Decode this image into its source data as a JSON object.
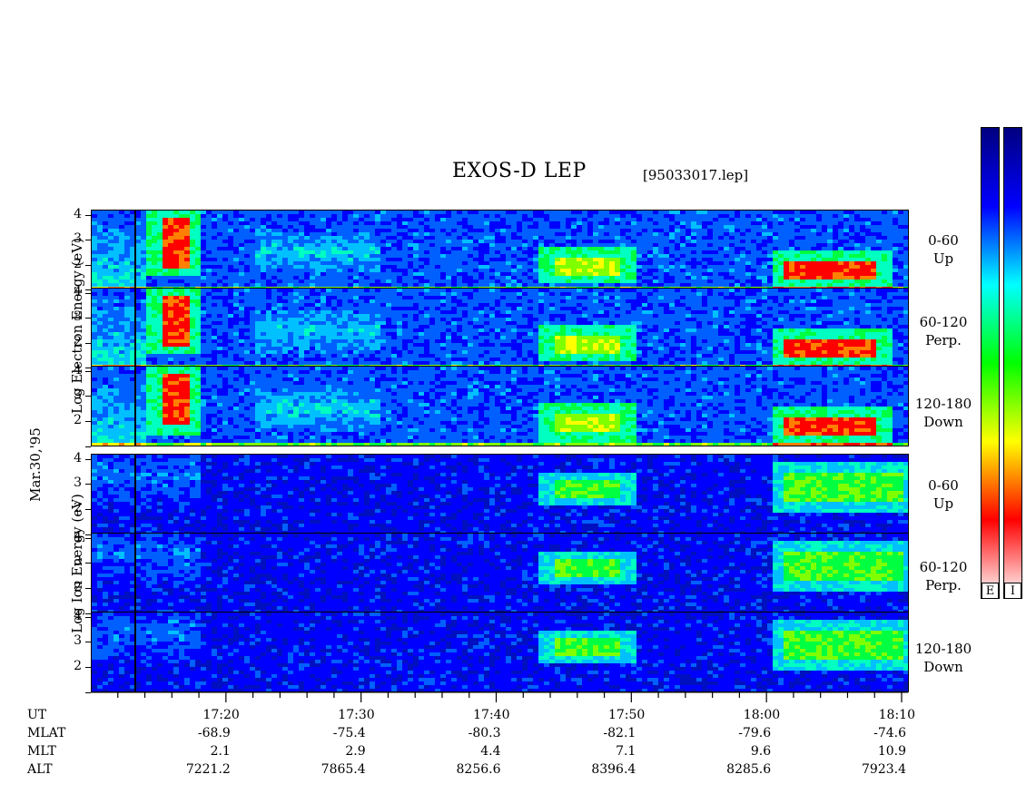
{
  "header": {
    "title": "EXOS-D LEP",
    "file": "[95033017.lep]"
  },
  "electron_group": {
    "ylabel": "Log  Electron  Energy  (eV)",
    "panels": [
      {
        "id": "e-up",
        "channel": "0-60",
        "direction": "Up"
      },
      {
        "id": "e-perp",
        "channel": "60-120",
        "direction": "Perp."
      },
      {
        "id": "e-down",
        "channel": "120-180",
        "direction": "Down"
      }
    ]
  },
  "ion_group": {
    "ylabel": "Log  Ion  Energy  (eV)",
    "panels": [
      {
        "id": "i-up",
        "channel": "0-60",
        "direction": "Up"
      },
      {
        "id": "i-perp",
        "channel": "60-120",
        "direction": "Perp."
      },
      {
        "id": "i-down",
        "channel": "120-180",
        "direction": "Down"
      }
    ]
  },
  "date_label": "Mar.30,'95",
  "colorbar": {
    "labels": [
      "E",
      "I"
    ],
    "colors_top_to_bottom": [
      "#000080",
      "#0000ff",
      "#00ffff",
      "#00ff00",
      "#ffff00",
      "#ff0000",
      "#ffffff"
    ]
  },
  "footer": {
    "row_labels": [
      "UT",
      "MLAT",
      "MLT",
      "ALT"
    ],
    "columns": [
      {
        "UT": "17:20",
        "MLAT": "-68.9",
        "MLT": "2.1",
        "ALT": "7221.2"
      },
      {
        "UT": "17:30",
        "MLAT": "-75.4",
        "MLT": "2.9",
        "ALT": "7865.4"
      },
      {
        "UT": "17:40",
        "MLAT": "-80.3",
        "MLT": "4.4",
        "ALT": "8256.6"
      },
      {
        "UT": "17:50",
        "MLAT": "-82.1",
        "MLT": "7.1",
        "ALT": "8396.4"
      },
      {
        "UT": "18:00",
        "MLAT": "-79.6",
        "MLT": "9.6",
        "ALT": "8285.6"
      },
      {
        "UT": "18:10",
        "MLAT": "-74.6",
        "MLT": "10.9",
        "ALT": "7923.4"
      }
    ]
  },
  "chart_data": {
    "type": "heatmap",
    "title": "EXOS-D LEP",
    "x_axis": {
      "label": "UT",
      "ticks": [
        "17:20",
        "17:30",
        "17:40",
        "17:50",
        "18:00",
        "18:10"
      ],
      "minor_tick_minutes": 2
    },
    "y_axis": {
      "label": "Log Energy (eV)",
      "ticks": [
        1,
        2,
        3,
        4
      ],
      "tick_labels": [
        "",
        "2",
        "3",
        "4"
      ],
      "range": [
        1,
        4.2
      ]
    },
    "panels": [
      "Electron 0-60 Up",
      "Electron 60-120 Perp.",
      "Electron 120-180 Down",
      "Ion 0-60 Up",
      "Ion 60-120 Perp.",
      "Ion 120-180 Down"
    ],
    "colorscale": [
      "#000080",
      "#0000ff",
      "#00ffff",
      "#00ff00",
      "#ffff00",
      "#ff0000",
      "#ffffff"
    ],
    "features": {
      "electron": [
        {
          "ut": "17:15-17:17",
          "log_energy": [
            2.0,
            4.0
          ],
          "level": "high"
        },
        {
          "ut": "17:44-17:49",
          "log_energy": [
            1.7,
            2.4
          ],
          "level": "medium"
        },
        {
          "ut": "18:01-18:08",
          "log_energy": [
            1.5,
            2.3
          ],
          "level": "high"
        }
      ],
      "ion": [
        {
          "ut": "17:44-17:49",
          "log_energy": [
            2.6,
            3.2
          ],
          "level": "medium"
        },
        {
          "ut": "18:01-18:10",
          "log_energy": [
            2.4,
            3.6
          ],
          "level": "medium"
        }
      ]
    }
  }
}
